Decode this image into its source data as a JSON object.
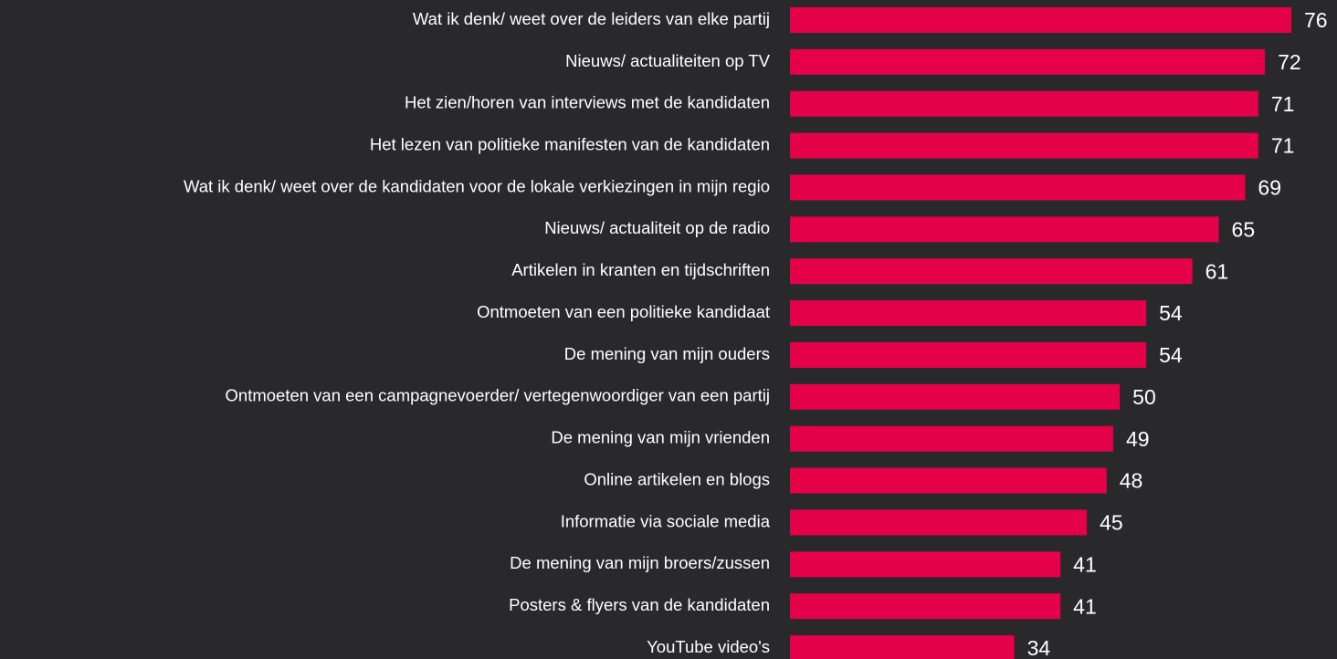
{
  "chart_data": {
    "type": "bar",
    "orientation": "horizontal",
    "color": "#e5004a",
    "categories": [
      "Wat ik denk/ weet over de leiders van elke partij",
      "Nieuws/ actualiteiten op TV",
      "Het zien/horen van interviews met de kandidaten",
      "Het lezen van politieke manifesten van de kandidaten",
      "Wat ik denk/ weet over de kandidaten voor de lokale verkiezingen in mijn regio",
      "Nieuws/ actualiteit op de radio",
      "Artikelen in kranten en tijdschriften",
      "Ontmoeten van een politieke kandidaat",
      "De mening van mijn ouders",
      "Ontmoeten van een campagnevoerder/ vertegenwoordiger van een partij",
      "De mening van mijn vrienden",
      "Online artikelen en blogs",
      "Informatie via sociale media",
      "De mening van mijn broers/zussen",
      "Posters & flyers van de kandidaten",
      "YouTube video's"
    ],
    "values": [
      76,
      72,
      71,
      71,
      69,
      65,
      61,
      54,
      54,
      50,
      49,
      48,
      45,
      41,
      41,
      34
    ]
  }
}
